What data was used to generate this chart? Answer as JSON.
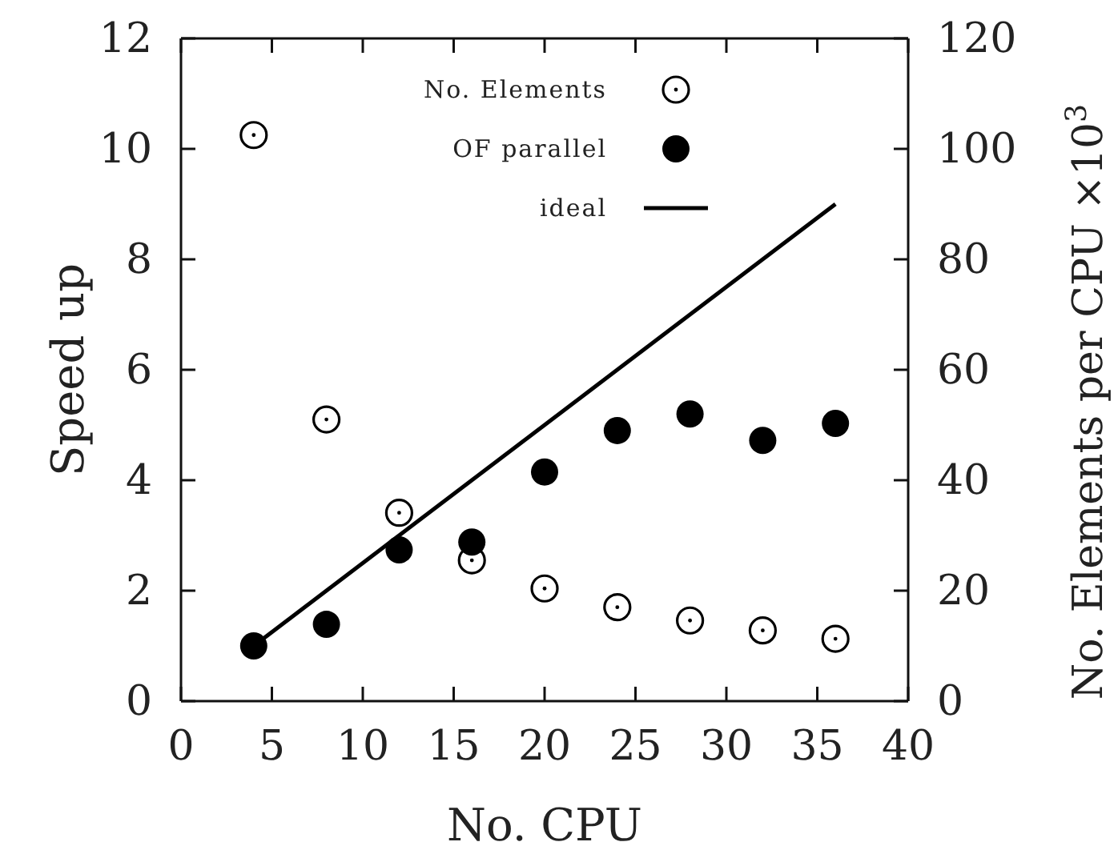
{
  "chart_data": {
    "type": "scatter",
    "xlabel": "No. CPU",
    "ylabel": "Speed up",
    "y2label": "No. Elements per CPU ×10$^{3}$",
    "x": [
      4,
      8,
      12,
      16,
      20,
      24,
      28,
      32,
      36
    ],
    "series": [
      {
        "name": "No. Elements",
        "color": "#000000",
        "marker": "circle-dot",
        "axis": "y2",
        "values": [
          102.5,
          51,
          34.1,
          25.5,
          20.4,
          17,
          14.6,
          12.8,
          11.3
        ]
      },
      {
        "name": "OF parallel",
        "color": "#000000",
        "marker": "circle",
        "values": [
          1.0,
          1.39,
          2.74,
          2.88,
          4.15,
          4.9,
          5.2,
          4.72,
          5.03
        ]
      },
      {
        "name": "ideal",
        "type": "line",
        "color": "#000000",
        "marker": "none",
        "x": [
          4,
          36
        ],
        "values": [
          1,
          9
        ]
      }
    ],
    "xlim": [
      0,
      40
    ],
    "xticks": [
      0,
      5,
      10,
      15,
      20,
      25,
      30,
      35,
      40
    ],
    "ylim": [
      0,
      12
    ],
    "yticks": [
      0,
      2,
      4,
      6,
      8,
      10,
      12
    ],
    "y2lim": [
      0,
      120
    ],
    "y2ticks": [
      0,
      20,
      40,
      60,
      80,
      100,
      120
    ],
    "grid": false,
    "legend": "top"
  }
}
